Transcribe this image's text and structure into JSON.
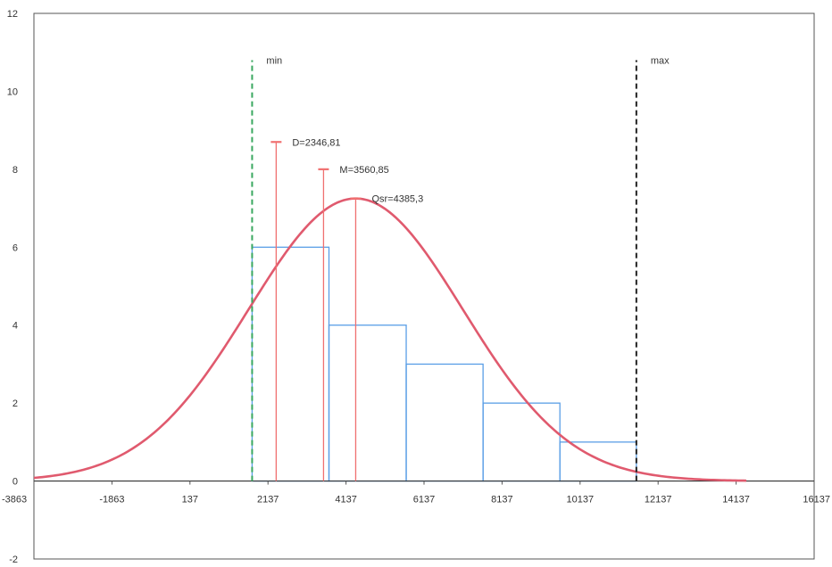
{
  "chart_data": {
    "type": "bar",
    "title": "",
    "xlabel": "",
    "ylabel": "",
    "xlim": [
      -3863,
      16137
    ],
    "ylim": [
      -2,
      12
    ],
    "x_ticks": [
      -3863,
      -1863,
      137,
      2137,
      4137,
      6137,
      8137,
      10137,
      12137,
      14137,
      16137
    ],
    "x_tick_labels": [
      "-3863",
      "-1863",
      "137",
      "2137",
      "4137",
      "6137",
      "8137",
      "10137",
      "12137",
      "14137",
      "16137"
    ],
    "y_ticks": [
      -2,
      0,
      2,
      4,
      6,
      8,
      10,
      12
    ],
    "y_tick_labels": [
      "-2",
      "0",
      "2",
      "4",
      "6",
      "8",
      "10",
      "12"
    ],
    "grid": false,
    "histogram": {
      "bins": [
        {
          "x0": 1730,
          "x1": 3700,
          "count": 6
        },
        {
          "x0": 3700,
          "x1": 5680,
          "count": 4
        },
        {
          "x0": 5680,
          "x1": 7650,
          "count": 3
        },
        {
          "x0": 7650,
          "x1": 9620,
          "count": 2
        },
        {
          "x0": 9620,
          "x1": 11580,
          "count": 1
        }
      ],
      "color": "#5a9ee6"
    },
    "normal_curve": {
      "mean": 4385.3,
      "sd": 2750,
      "peak": 7.25,
      "x_range": [
        -3863,
        14400
      ],
      "color": "#e05a6e"
    },
    "vertical_markers": [
      {
        "label": "D=2346,81",
        "x": 2346.81,
        "y_top": 8.7,
        "color": "#f07070"
      },
      {
        "label": "M=3560,85",
        "x": 3560.85,
        "y_top": 8.0,
        "color": "#f07070"
      },
      {
        "label": "Qsr=4385,3",
        "x": 4385.3,
        "y_top": 7.25,
        "color": "#f07070"
      }
    ],
    "reference_lines": [
      {
        "label": "min",
        "x": 1730,
        "color": "#3aa860",
        "style": "dashed"
      },
      {
        "label": "max",
        "x": 11580,
        "color": "#222222",
        "style": "dashed"
      }
    ]
  }
}
